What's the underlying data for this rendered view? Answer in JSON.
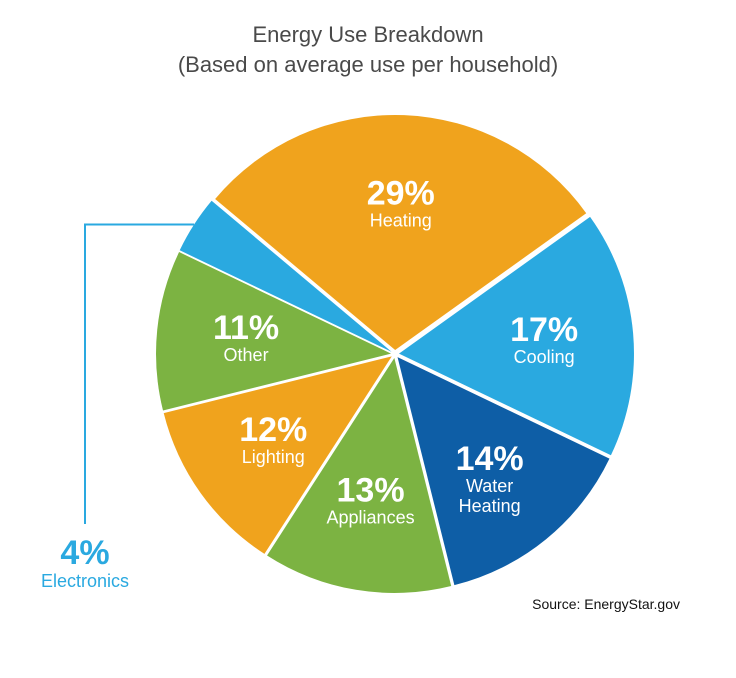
{
  "title_line1": "Energy Use Breakdown",
  "title_line2": "(Based on average use per household)",
  "source": "Source: EnergyStar.gov",
  "chart": {
    "type": "pie",
    "background_color": "#ffffff",
    "title_color": "#4a4a4a",
    "title_fontsize": 22,
    "radius": 235,
    "explode_gap": 4,
    "pct_fontsize": 34,
    "label_fontsize": 18,
    "label_color_inside": "#ffffff",
    "callout_color": "#2aa9e0",
    "sector_start_angle_deg": 310,
    "slices": [
      {
        "key": "s0",
        "pct_text": "29%",
        "label": "Heating",
        "value": 29,
        "color": "#f0a31d"
      },
      {
        "key": "s1",
        "pct_text": "17%",
        "label": "Cooling",
        "value": 17,
        "color": "#2aa9e0"
      },
      {
        "key": "s2",
        "pct_text": "14%",
        "label": "Water Heating",
        "value": 14,
        "color": "#0e5ea6",
        "label2": "Heating",
        "labelTop": "Water"
      },
      {
        "key": "s3",
        "pct_text": "13%",
        "label": "Appliances",
        "value": 13,
        "color": "#7cb342"
      },
      {
        "key": "s4",
        "pct_text": "12%",
        "label": "Lighting",
        "value": 12,
        "color": "#f0a31d"
      },
      {
        "key": "s5",
        "pct_text": "11%",
        "label": "Other",
        "value": 11,
        "color": "#7cb342"
      },
      {
        "key": "s6",
        "pct_text": "4%",
        "label": "Electronics",
        "value": 4,
        "color": "#2aa9e0",
        "callout": true
      }
    ],
    "leader_line_color": "#2aa9e0",
    "leader_line_width": 2
  }
}
